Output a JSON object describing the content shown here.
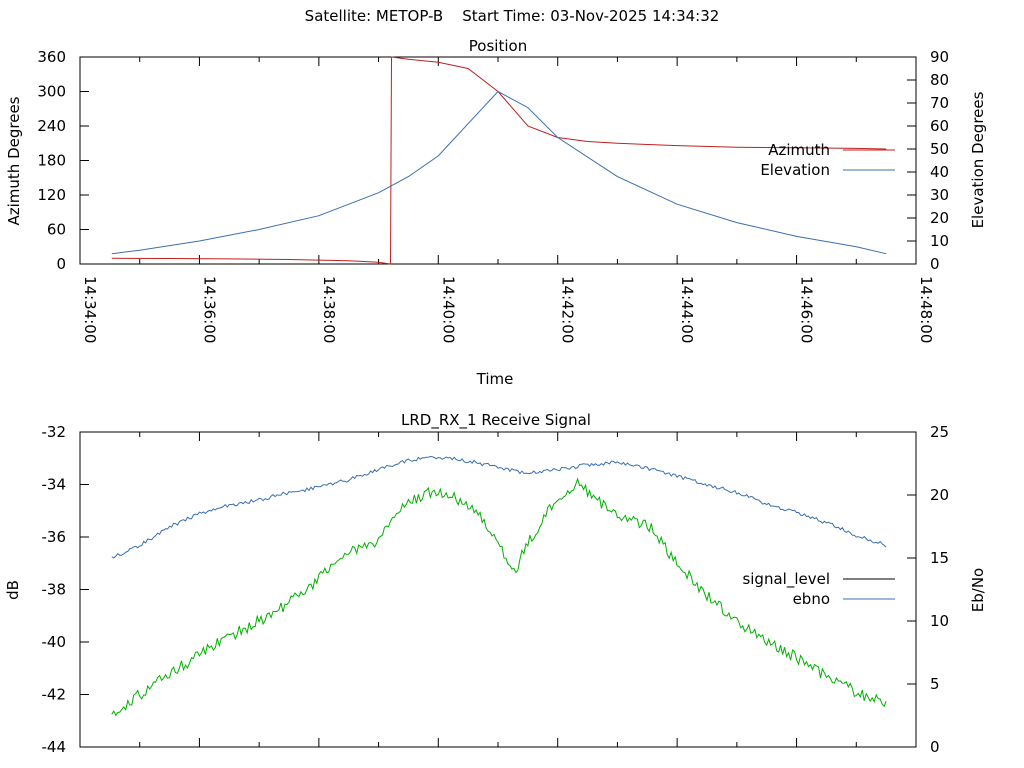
{
  "header": {
    "title": "Satellite: METOP-B    Start Time: 03-Nov-2025 14:34:32"
  },
  "colors": {
    "azimuth": "#c02020",
    "elevation": "#3a6fb0",
    "signal_level": "#000000",
    "ebno": "#3a6fb0",
    "signal_trace": "#00b000"
  },
  "chart_data": [
    {
      "type": "line",
      "title": "Position",
      "xlabel": "Time",
      "ylabel": "Azimuth Degrees",
      "y2label": "Elevation Degrees",
      "xlim": [
        "14:34:00",
        "14:48:00"
      ],
      "x_ticks": [
        "14:34:00",
        "14:36:00",
        "14:38:00",
        "14:40:00",
        "14:42:00",
        "14:44:00",
        "14:46:00",
        "14:48:00"
      ],
      "ylim": [
        0,
        360
      ],
      "y_ticks": [
        "0",
        "60",
        "120",
        "180",
        "240",
        "300",
        "360"
      ],
      "y2lim": [
        0,
        90
      ],
      "y2_ticks": [
        "0",
        "10",
        "20",
        "30",
        "40",
        "50",
        "60",
        "70",
        "80",
        "90"
      ],
      "legend": "right",
      "series": [
        {
          "name": "Azimuth",
          "axis": "y1",
          "x": [
            "14:34:32",
            "14:35:30",
            "14:36:30",
            "14:37:30",
            "14:38:30",
            "14:39:00",
            "14:39:12",
            "14:39:13",
            "14:39:30",
            "14:40:00",
            "14:40:30",
            "14:41:00",
            "14:41:30",
            "14:42:00",
            "14:42:30",
            "14:43:00",
            "14:44:00",
            "14:45:00",
            "14:46:00",
            "14:47:00",
            "14:47:30"
          ],
          "values": [
            10,
            9.5,
            8.8,
            7.8,
            5.5,
            3,
            0,
            360,
            356,
            351,
            340,
            300,
            240,
            220,
            213,
            210,
            206,
            203,
            202,
            201,
            200
          ]
        },
        {
          "name": "Elevation",
          "axis": "y2",
          "x": [
            "14:34:32",
            "14:35:00",
            "14:36:00",
            "14:37:00",
            "14:38:00",
            "14:39:00",
            "14:39:30",
            "14:40:00",
            "14:40:30",
            "14:41:00",
            "14:41:30",
            "14:42:00",
            "14:43:00",
            "14:44:00",
            "14:45:00",
            "14:46:00",
            "14:47:00",
            "14:47:30"
          ],
          "values": [
            4.5,
            6,
            10,
            15,
            21,
            31,
            38,
            47,
            61,
            75,
            68,
            55,
            38,
            26,
            18,
            12,
            7.5,
            4.5
          ]
        }
      ]
    },
    {
      "type": "line",
      "title": "LRD_RX_1 Receive Signal",
      "xlabel": "",
      "ylabel": "dB",
      "y2label": "Eb/No",
      "xlim": [
        "14:34:00",
        "14:48:00"
      ],
      "ylim": [
        -44,
        -32
      ],
      "y_ticks": [
        "-32",
        "-34",
        "-36",
        "-38",
        "-40",
        "-42",
        "-44"
      ],
      "y2lim": [
        0,
        25
      ],
      "y2_ticks": [
        "0",
        "5",
        "10",
        "15",
        "20",
        "25"
      ],
      "legend": "right",
      "legend_entries": [
        "signal_level",
        "ebno"
      ],
      "series": [
        {
          "name": "ebno",
          "axis": "y2",
          "x": [
            "14:34:32",
            "14:35:00",
            "14:35:30",
            "14:36:00",
            "14:36:30",
            "14:37:00",
            "14:37:30",
            "14:38:00",
            "14:38:30",
            "14:39:00",
            "14:39:30",
            "14:40:00",
            "14:40:30",
            "14:41:00",
            "14:41:30",
            "14:42:00",
            "14:42:30",
            "14:43:00",
            "14:43:30",
            "14:44:00",
            "14:44:30",
            "14:45:00",
            "14:45:30",
            "14:46:00",
            "14:46:30",
            "14:47:00",
            "14:47:30"
          ],
          "values": [
            15,
            16,
            17.5,
            18.5,
            19.2,
            19.6,
            20.2,
            20.6,
            21.2,
            22,
            22.8,
            23,
            22.7,
            22.2,
            21.7,
            22,
            22.4,
            22.6,
            22.1,
            21.5,
            20.8,
            20.2,
            19.3,
            18.6,
            17.8,
            16.8,
            16
          ]
        },
        {
          "name": "",
          "axis": "y1",
          "x": [
            "14:34:32",
            "14:35:00",
            "14:35:30",
            "14:36:00",
            "14:36:30",
            "14:37:00",
            "14:37:30",
            "14:38:00",
            "14:38:30",
            "14:39:00",
            "14:39:20",
            "14:39:40",
            "14:40:00",
            "14:40:30",
            "14:41:00",
            "14:41:15",
            "14:41:30",
            "14:42:00",
            "14:42:20",
            "14:42:40",
            "14:43:00",
            "14:43:30",
            "14:44:00",
            "14:44:30",
            "14:45:00",
            "14:45:30",
            "14:46:00",
            "14:46:30",
            "14:47:00",
            "14:47:30"
          ],
          "values": [
            -42.8,
            -42,
            -41.2,
            -40.5,
            -39.8,
            -39.2,
            -38.5,
            -37.6,
            -36.6,
            -36.1,
            -35,
            -34.5,
            -34.2,
            -34.8,
            -36,
            -37.5,
            -36.2,
            -34.5,
            -34,
            -34.6,
            -35.2,
            -35.5,
            -37,
            -38.2,
            -39.2,
            -40,
            -40.6,
            -41.3,
            -41.9,
            -42.4
          ]
        }
      ]
    }
  ]
}
